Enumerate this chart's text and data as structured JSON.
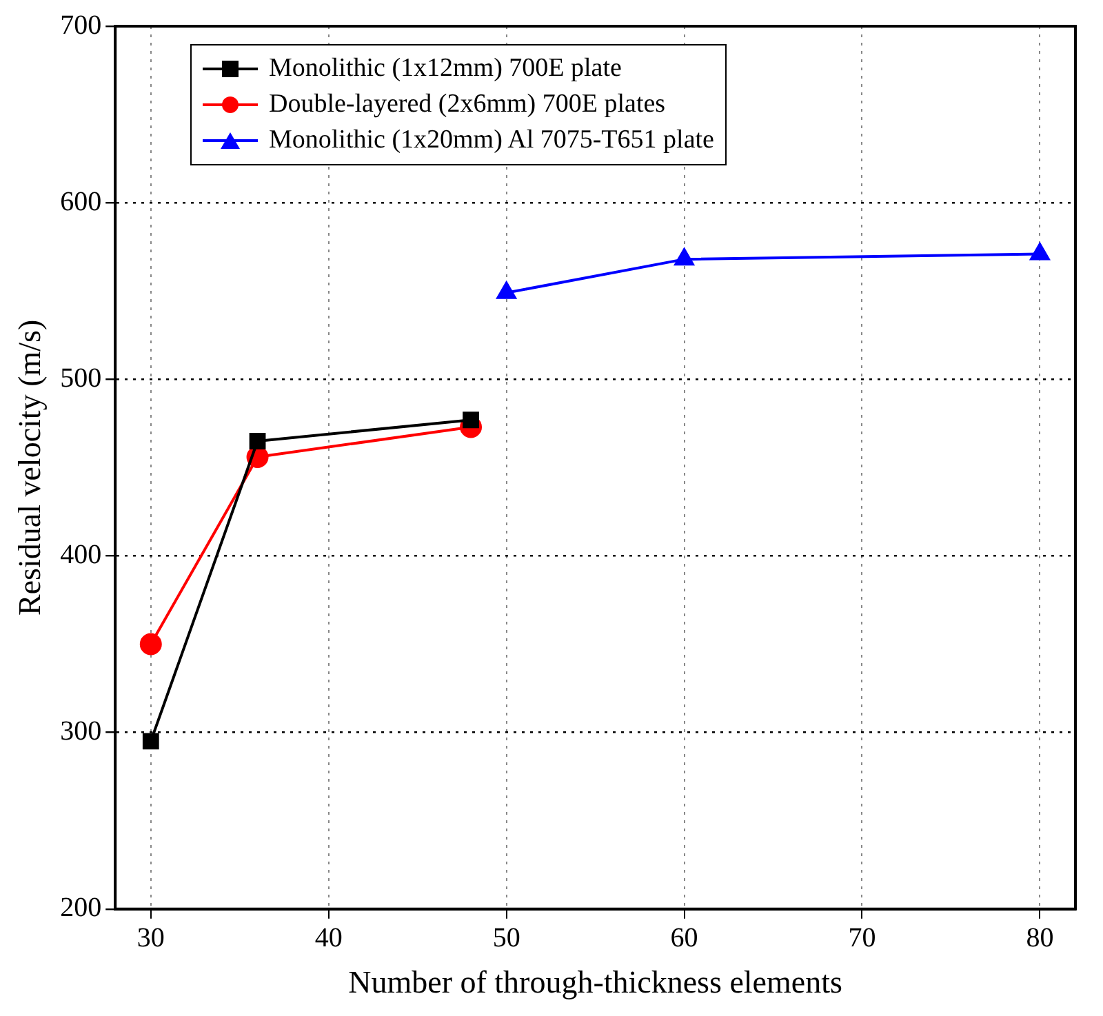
{
  "chart_data": {
    "type": "line",
    "xlabel": "Number of through-thickness elements",
    "ylabel": "Residual velocity (m/s)",
    "xlim": [
      28,
      82
    ],
    "xticks": [
      30,
      40,
      50,
      60,
      70,
      80
    ],
    "ylim": [
      200,
      700
    ],
    "yticks": [
      200,
      300,
      400,
      500,
      600,
      700
    ],
    "grid": true,
    "legend": "top left",
    "line_style": "solid",
    "series": [
      {
        "name": "Monolithic (1x12mm) 700E plate",
        "color": "#000000",
        "marker": "square",
        "x": [
          30,
          36,
          48
        ],
        "values": [
          295,
          465,
          477
        ]
      },
      {
        "name": "Double-layered (2x6mm) 700E plates",
        "color": "#ff0000",
        "marker": "circle",
        "x": [
          30,
          36,
          48
        ],
        "values": [
          350,
          456,
          473
        ]
      },
      {
        "name": "Monolithic (1x20mm) Al 7075-T651 plate",
        "color": "#0000ff",
        "marker": "triangle",
        "x": [
          50,
          60,
          80
        ],
        "values": [
          549,
          568,
          571
        ]
      }
    ]
  }
}
